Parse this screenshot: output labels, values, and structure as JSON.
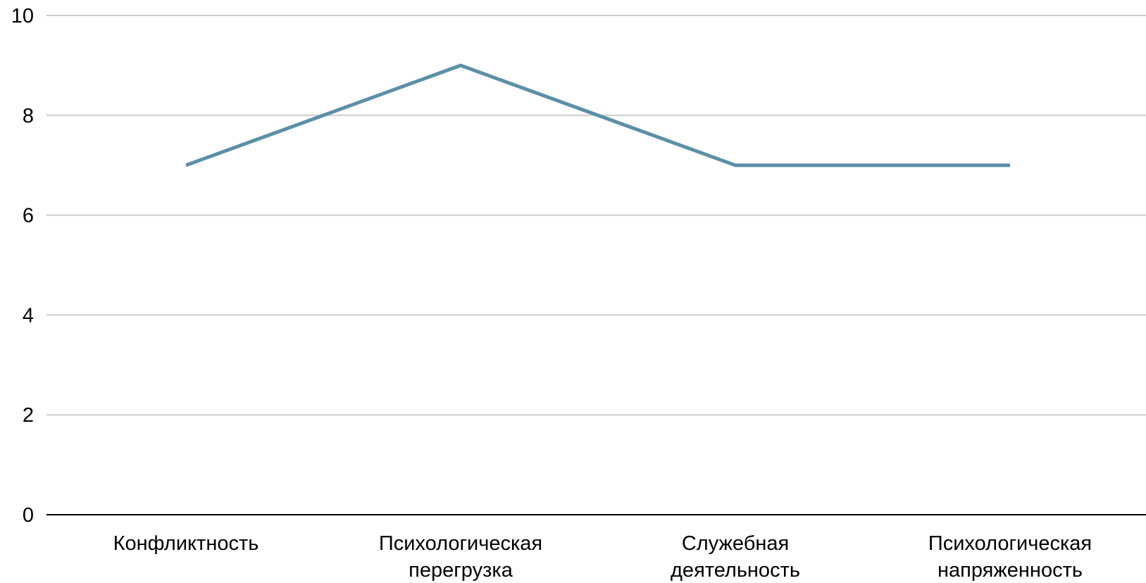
{
  "chart_data": {
    "type": "line",
    "title": "",
    "xlabel": "",
    "ylabel": "",
    "categories": [
      [
        "Конфликтность"
      ],
      [
        "Психологическая",
        "перегрузка"
      ],
      [
        "Служебная",
        "деятельность"
      ],
      [
        "Психологическая",
        "напряженность"
      ]
    ],
    "series": [
      {
        "values": [
          7,
          9,
          7,
          7
        ]
      }
    ],
    "ylim": [
      0,
      10
    ],
    "yticks": [
      0,
      2,
      4,
      6,
      8,
      10
    ],
    "grid": true,
    "legend": "none",
    "colors": {
      "line": "#5b8fa8",
      "grid": "#cccccc",
      "axis": "#000000"
    }
  }
}
